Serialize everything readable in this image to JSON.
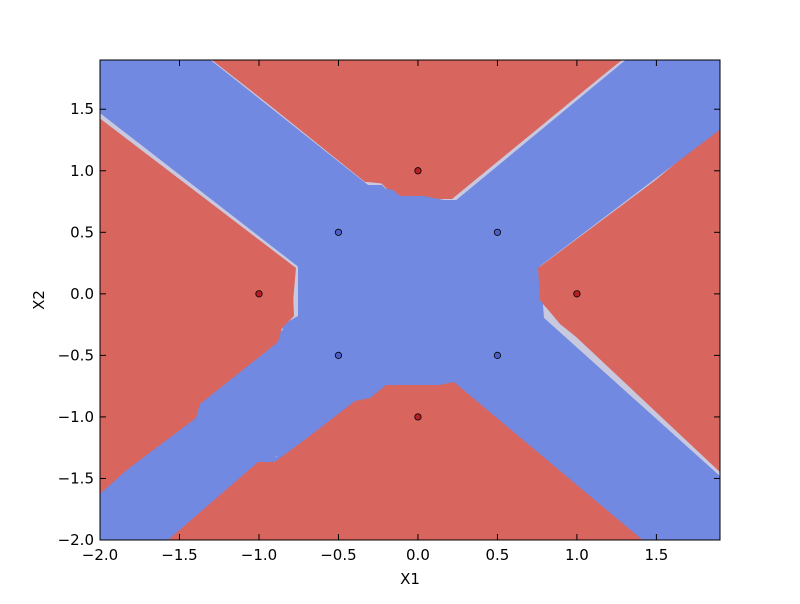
{
  "chart_data": {
    "type": "scatter",
    "title": "",
    "xlabel": "X1",
    "ylabel": "X2",
    "xlim": [
      -2.0,
      1.9
    ],
    "ylim": [
      -2.0,
      1.9
    ],
    "xticks": [
      -2.0,
      -1.5,
      -1.0,
      -0.5,
      0.0,
      0.5,
      1.0,
      1.5
    ],
    "yticks": [
      -2.0,
      -1.5,
      -1.0,
      -0.5,
      0.0,
      0.5,
      1.0,
      1.5
    ],
    "xtick_labels": [
      "−2.0",
      "−1.5",
      "−1.0",
      "−0.5",
      "0.0",
      "0.5",
      "1.0",
      "1.5"
    ],
    "ytick_labels": [
      "−2.0",
      "−1.5",
      "−1.0",
      "−0.5",
      "0.0",
      "0.5",
      "1.0",
      "1.5"
    ],
    "grid": false,
    "background_regions": {
      "description": "decision-boundary contour fill",
      "class_colors": {
        "red": "#d9655f",
        "blue": "#7289e2"
      }
    },
    "series": [
      {
        "class": "red",
        "color": "#d9655f",
        "points": [
          [
            0.0,
            1.0
          ],
          [
            -1.0,
            0.0
          ],
          [
            1.0,
            0.0
          ],
          [
            0.0,
            -1.0
          ]
        ]
      },
      {
        "class": "blue",
        "color": "#7289e2",
        "points": [
          [
            -0.5,
            0.5
          ],
          [
            0.5,
            0.5
          ],
          [
            -0.5,
            -0.5
          ],
          [
            0.5,
            -0.5
          ]
        ]
      }
    ]
  }
}
